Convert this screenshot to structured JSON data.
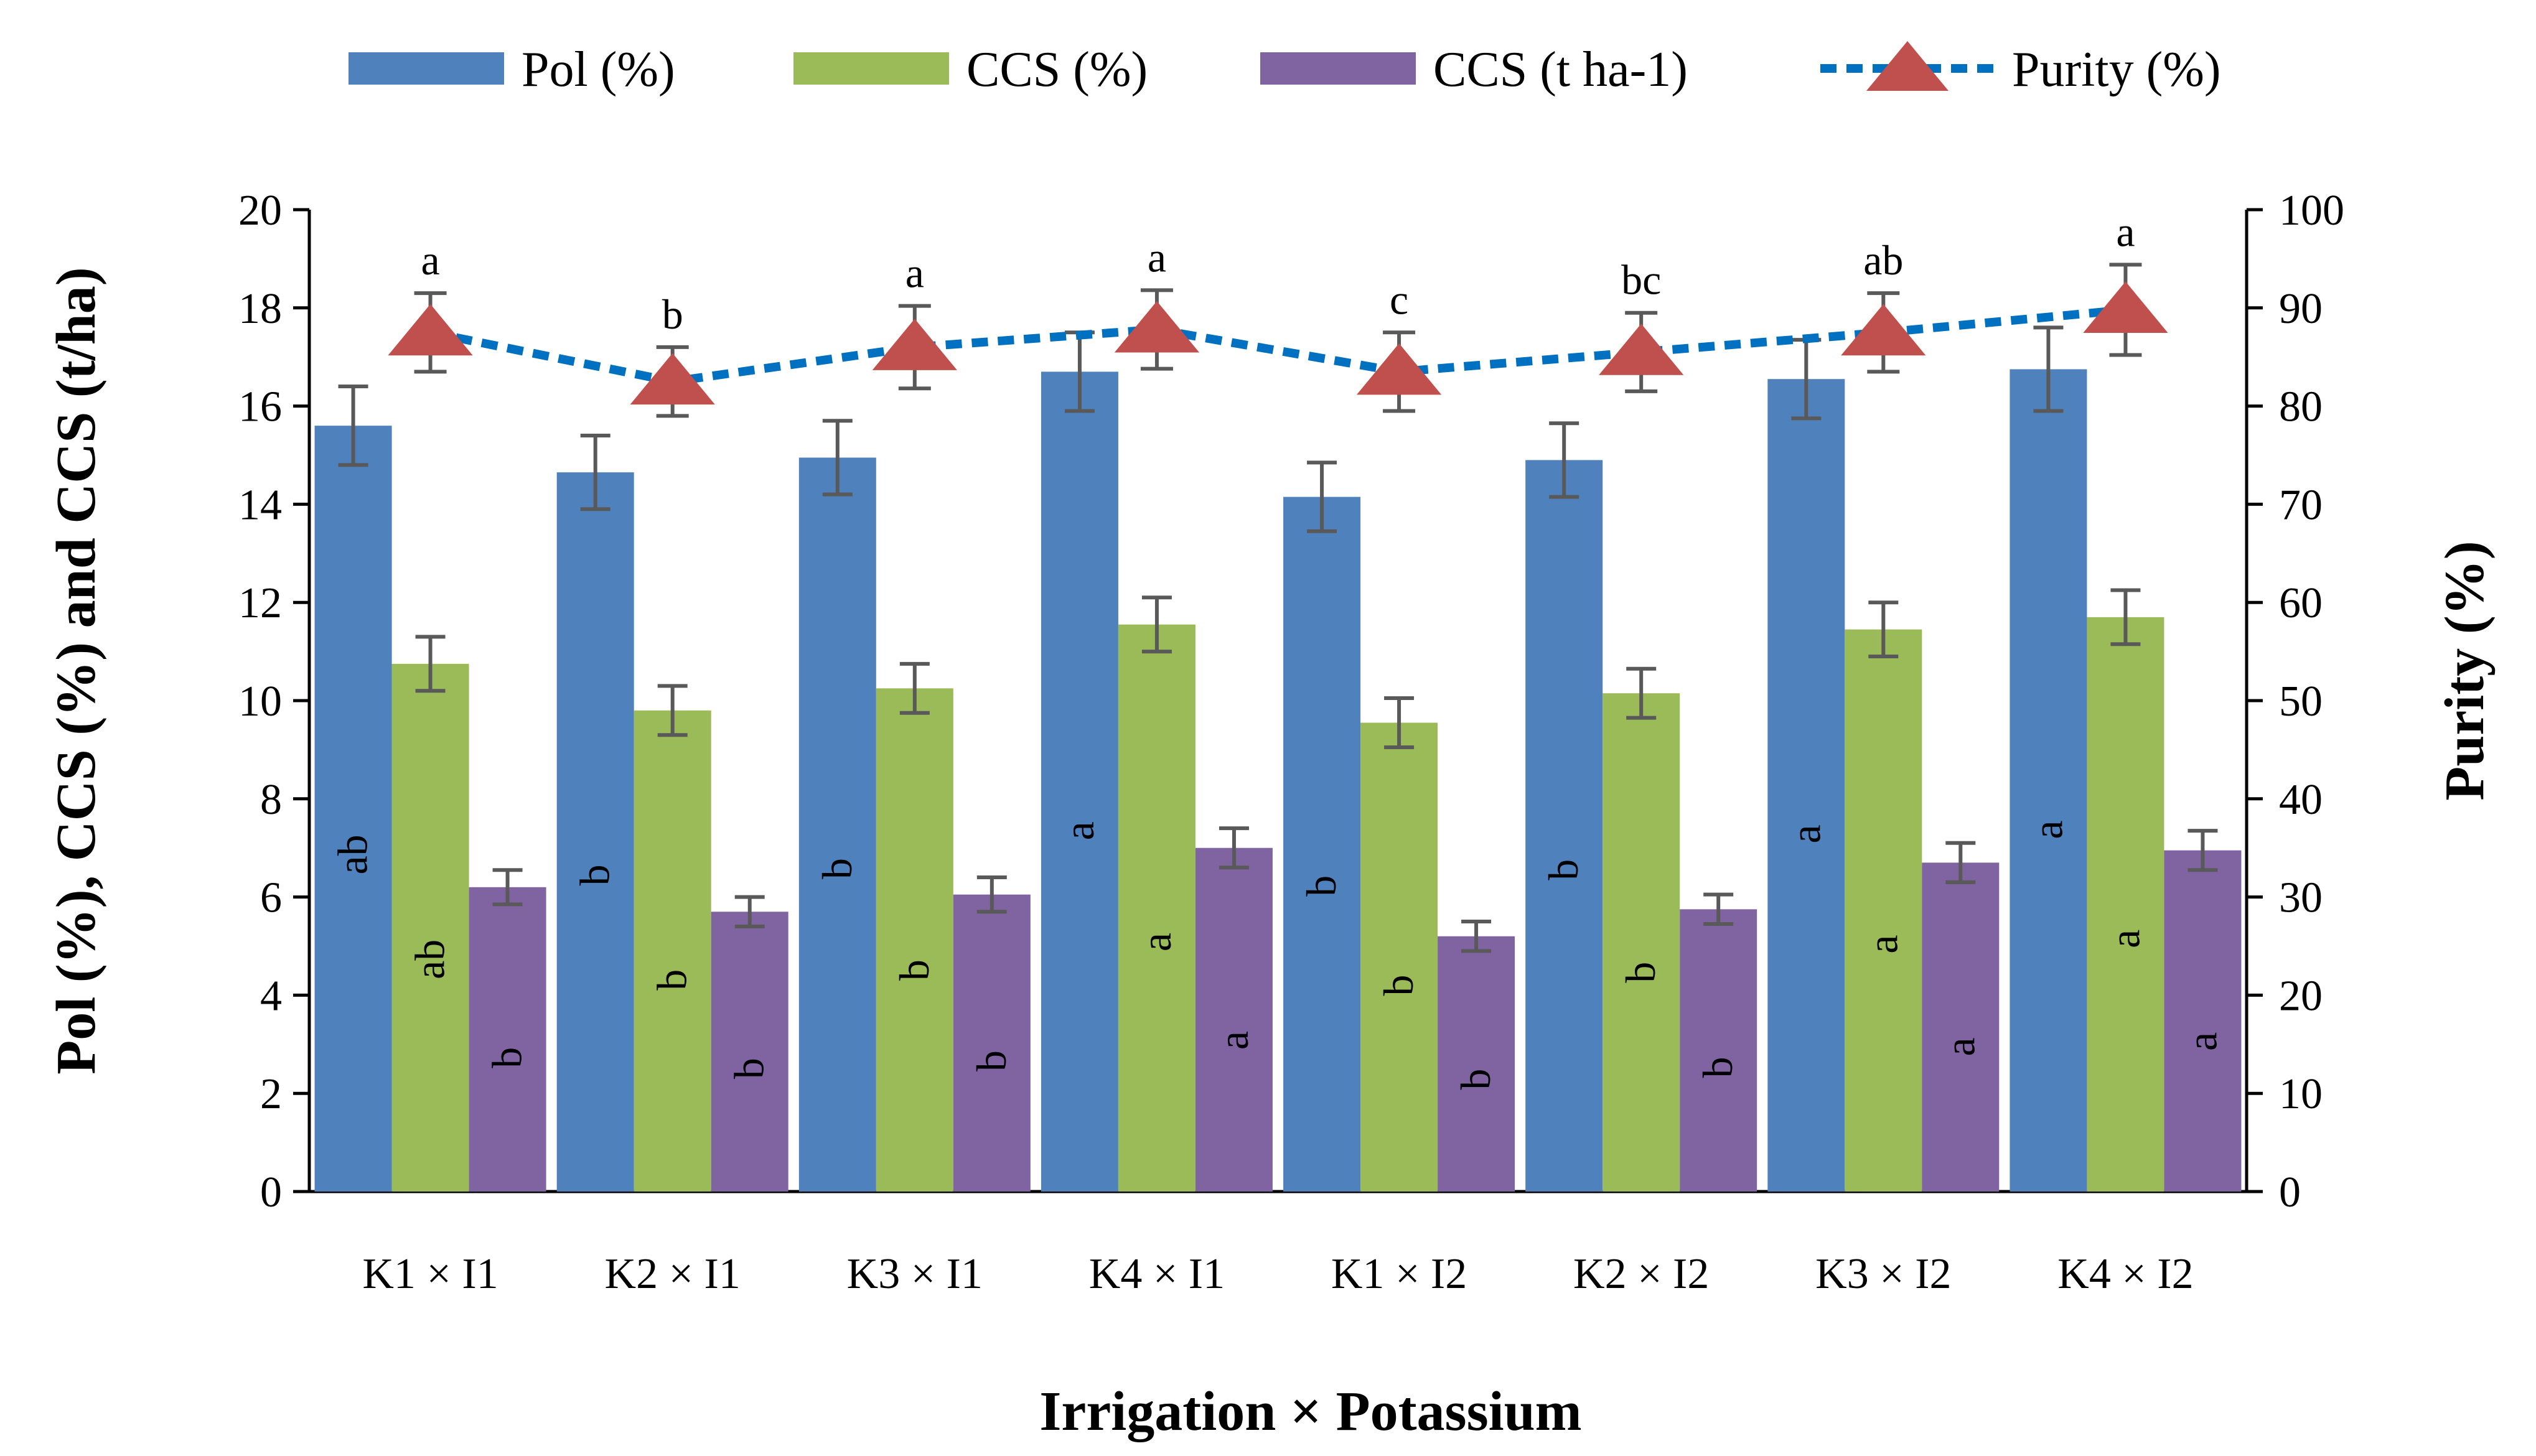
{
  "chart_data": {
    "type": "bar",
    "categories": [
      "K1 × I1",
      "K2 × I1",
      "K3 × I1",
      "K4 × I1",
      "K1 × I2",
      "K2 × I2",
      "K3 × I2",
      "K4 × I2"
    ],
    "xlabel": "Irrigation × Potassium",
    "ylabel": "Pol (%), CCS (%) and CCS (t/ha)",
    "y2label": "Purity (%)",
    "ylim": [
      0,
      20
    ],
    "y2lim": [
      0,
      100
    ],
    "yticks": [
      "0",
      "2",
      "4",
      "6",
      "8",
      "10",
      "12",
      "14",
      "16",
      "18",
      "20"
    ],
    "y2ticks": [
      "0",
      "10",
      "20",
      "30",
      "40",
      "50",
      "60",
      "70",
      "80",
      "90",
      "100"
    ],
    "legend_position": "top",
    "grid": false,
    "series": [
      {
        "name": "Pol (%)",
        "type": "bar",
        "axis": "left",
        "color": "#4F81BD",
        "values": [
          15.6,
          14.65,
          14.95,
          16.7,
          14.15,
          14.9,
          16.55,
          16.75
        ],
        "errors": [
          0.8,
          0.75,
          0.75,
          0.8,
          0.7,
          0.75,
          0.8,
          0.85
        ],
        "letters": [
          "ab",
          "b",
          "b",
          "a",
          "b",
          "b",
          "a",
          "a"
        ]
      },
      {
        "name": "CCS (%)",
        "type": "bar",
        "axis": "left",
        "color": "#9BBB59",
        "values": [
          10.75,
          9.8,
          10.25,
          11.55,
          9.55,
          10.15,
          11.45,
          11.7
        ],
        "errors": [
          0.55,
          0.5,
          0.5,
          0.55,
          0.5,
          0.5,
          0.55,
          0.55
        ],
        "letters": [
          "ab",
          "b",
          "b",
          "a",
          "b",
          "b",
          "a",
          "a"
        ]
      },
      {
        "name": "CCS (t ha-1)",
        "type": "bar",
        "axis": "left",
        "color": "#8064A2",
        "values": [
          6.2,
          5.7,
          6.05,
          7.0,
          5.2,
          5.75,
          6.7,
          6.95
        ],
        "errors": [
          0.35,
          0.3,
          0.35,
          0.4,
          0.3,
          0.3,
          0.4,
          0.4
        ],
        "letters": [
          "b",
          "b",
          "b",
          "a",
          "b",
          "b",
          "a",
          "a"
        ]
      },
      {
        "name": "Purity (%)",
        "type": "line",
        "axis": "right",
        "color": "#0070C0",
        "marker_color": "#C0504D",
        "values": [
          87.5,
          82.5,
          86.0,
          87.8,
          83.5,
          85.5,
          87.5,
          89.8
        ],
        "errors": [
          4.0,
          3.5,
          4.2,
          4.0,
          4.0,
          4.0,
          4.0,
          4.6
        ],
        "letters": [
          "a",
          "b",
          "a",
          "a",
          "c",
          "bc",
          "ab",
          "a"
        ]
      }
    ]
  }
}
